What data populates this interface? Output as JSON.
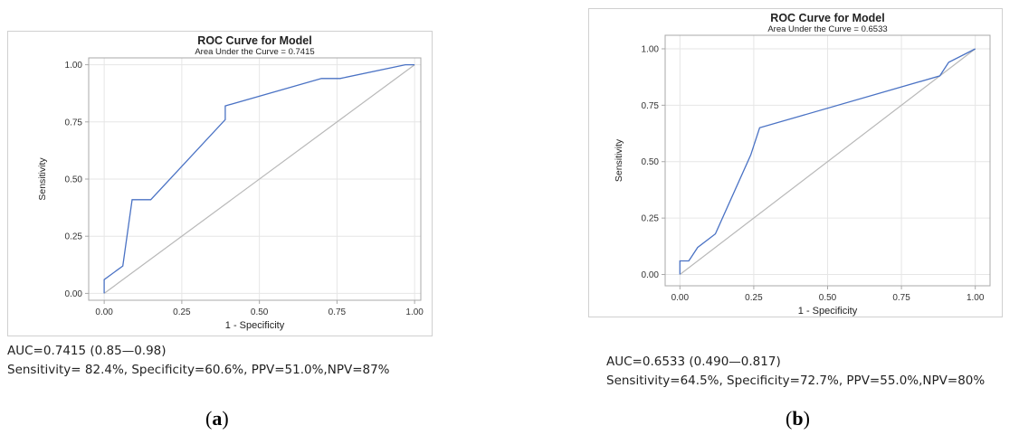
{
  "colors": {
    "curve": "#4a72c4",
    "diagonal": "#b8b8b8",
    "grid": "#e6e6e6",
    "frame": "#a8a8a8",
    "text": "#222222"
  },
  "chart_data": [
    {
      "type": "line",
      "title": "ROC Curve for Model",
      "subtitle": "Area Under the Curve = 0.7415",
      "xlabel": "1 - Specificity",
      "ylabel": "Sensitivity",
      "xlim": [
        -0.05,
        1.02
      ],
      "ylim": [
        -0.03,
        1.03
      ],
      "xticks": [
        "0.00",
        "0.25",
        "0.50",
        "0.75",
        "1.00"
      ],
      "yticks": [
        "0.00",
        "0.25",
        "0.50",
        "0.75",
        "1.00"
      ],
      "grid": true,
      "series": [
        {
          "x": [
            0.0,
            0.0,
            0.06,
            0.09,
            0.09,
            0.15,
            0.39,
            0.39,
            0.7,
            0.76,
            0.97,
            1.0
          ],
          "y": [
            0.0,
            0.06,
            0.12,
            0.41,
            0.41,
            0.41,
            0.76,
            0.82,
            0.94,
            0.94,
            1.0,
            1.0
          ]
        },
        {
          "x": [
            0.0,
            1.0
          ],
          "y": [
            0.0,
            1.0
          ]
        }
      ]
    },
    {
      "type": "line",
      "title": "ROC Curve for Model",
      "subtitle": "Area Under the Curve = 0.6533",
      "xlabel": "1 - Specificity",
      "ylabel": "Sensitivity",
      "xlim": [
        -0.05,
        1.05
      ],
      "ylim": [
        -0.05,
        1.06
      ],
      "xticks": [
        "0.00",
        "0.25",
        "0.50",
        "0.75",
        "1.00"
      ],
      "yticks": [
        "0.00",
        "0.25",
        "0.50",
        "0.75",
        "1.00"
      ],
      "grid": true,
      "series": [
        {
          "x": [
            0.0,
            0.0,
            0.03,
            0.06,
            0.12,
            0.24,
            0.27,
            0.88,
            0.91,
            1.0
          ],
          "y": [
            0.0,
            0.06,
            0.06,
            0.12,
            0.18,
            0.53,
            0.65,
            0.88,
            0.94,
            1.0
          ]
        },
        {
          "x": [
            0.0,
            1.0
          ],
          "y": [
            0.0,
            1.0
          ]
        }
      ]
    }
  ],
  "captions": {
    "a": {
      "auc": "AUC=0.7415 (0.85—0.98)",
      "metrics": "Sensitivity= 82.4%, Specificity=60.6%, PPV=51.0%,NPV=87%",
      "label": "a"
    },
    "b": {
      "auc": "AUC=0.6533 (0.490—0.817)",
      "metrics": "Sensitivity=64.5%, Specificity=72.7%, PPV=55.0%,NPV=80%",
      "label": "b"
    }
  }
}
